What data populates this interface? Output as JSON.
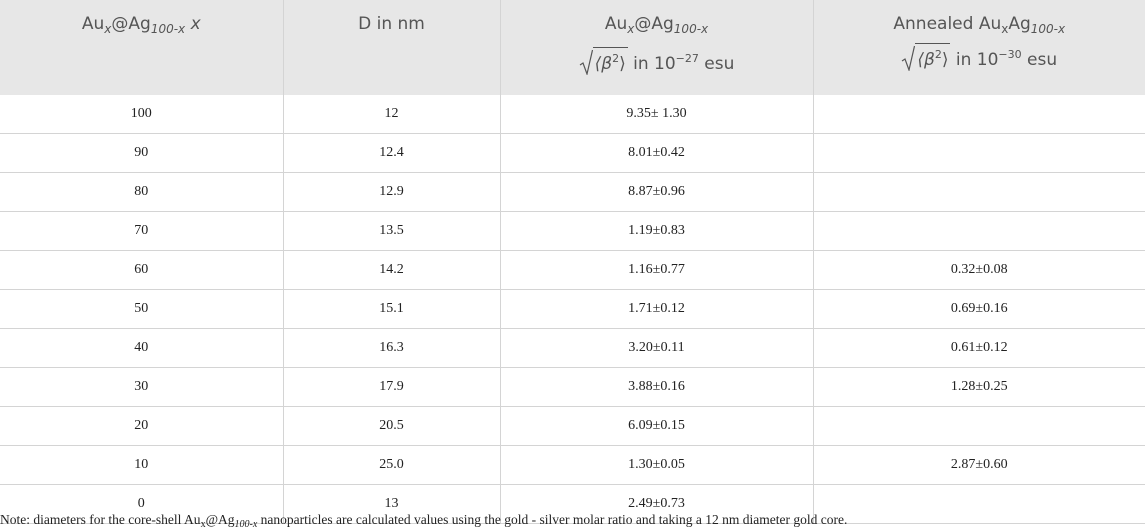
{
  "table": {
    "headers": [
      {
        "line1": [
          "Au",
          "x",
          "@Ag",
          "100-x",
          "x"
        ]
      },
      {
        "line1": [
          "D in nm"
        ]
      },
      {
        "line1": [
          "Au",
          "x",
          "@Ag",
          "100-x"
        ],
        "line2": [
          "⟨β",
          "2",
          "⟩",
          "in 10",
          "−27",
          "esu"
        ]
      },
      {
        "line1": [
          "Annealed Au",
          "x",
          "Ag",
          "100-x"
        ],
        "line2": [
          "⟨β",
          "2",
          "⟩",
          "in 10",
          "−30",
          "esu"
        ]
      }
    ],
    "rows": [
      [
        "100",
        "12",
        "9.35± 1.30",
        null
      ],
      [
        "90",
        "12.4",
        "8.01±0.42",
        null
      ],
      [
        "80",
        "12.9",
        "8.87±0.96",
        null
      ],
      [
        "70",
        "13.5",
        "1.19±0.83",
        null
      ],
      [
        "60",
        "14.2",
        "1.16±0.77",
        "0.32±0.08"
      ],
      [
        "50",
        "15.1",
        "1.71±0.12",
        "0.69±0.16"
      ],
      [
        "40",
        "16.3",
        "3.20±0.11",
        "0.61±0.12"
      ],
      [
        "30",
        "17.9",
        "3.88±0.16",
        "1.28±0.25"
      ],
      [
        "20",
        "20.5",
        "6.09±0.15",
        null
      ],
      [
        "10",
        "25.0",
        "1.30±0.05",
        "2.87±0.60"
      ],
      [
        "0",
        "13",
        "2.49±0.73",
        null
      ]
    ],
    "note": [
      "Note: diameters for the core-shell Au",
      "x",
      "@Ag",
      "100-x",
      "nanoparticles are calculated values using the gold - silver molar ratio and taking a 12 nm diameter gold core."
    ]
  }
}
